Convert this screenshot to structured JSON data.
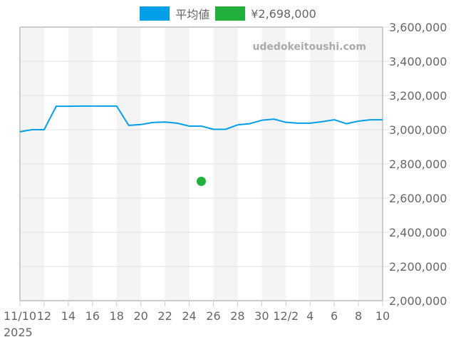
{
  "legend": [
    {
      "label": "平均値",
      "color": "#009fe8"
    },
    {
      "label": "¥2,698,000",
      "color": "#22b03c"
    }
  ],
  "watermark": "udedokeitoushi.com",
  "colors": {
    "band": "#f4f4f4",
    "grid": "#e0e0e0",
    "axis": "#cccccc",
    "tick_text": "#666666"
  },
  "chart_data": {
    "type": "line",
    "title": "",
    "xlabel": "",
    "ylabel": "",
    "ylim": [
      2000000,
      3600000
    ],
    "y_ticks": [
      2000000,
      2200000,
      2400000,
      2600000,
      2800000,
      3000000,
      3200000,
      3400000,
      3600000
    ],
    "y_tick_labels": [
      "2,000,000",
      "2,200,000",
      "2,400,000",
      "2,600,000",
      "2,800,000",
      "3,000,000",
      "3,200,000",
      "3,400,000",
      "3,600,000"
    ],
    "x_tick_labels": [
      {
        "day": 0,
        "label": "11/10"
      },
      {
        "day": 2,
        "label": "12"
      },
      {
        "day": 4,
        "label": "14"
      },
      {
        "day": 6,
        "label": "16"
      },
      {
        "day": 8,
        "label": "18"
      },
      {
        "day": 10,
        "label": "20"
      },
      {
        "day": 12,
        "label": "22"
      },
      {
        "day": 14,
        "label": "24"
      },
      {
        "day": 16,
        "label": "26"
      },
      {
        "day": 18,
        "label": "28"
      },
      {
        "day": 20,
        "label": "30"
      },
      {
        "day": 22,
        "label": "12/2"
      },
      {
        "day": 24,
        "label": "4"
      },
      {
        "day": 26,
        "label": "6"
      },
      {
        "day": 28,
        "label": "8"
      },
      {
        "day": 30,
        "label": "10"
      }
    ],
    "year_label": "2025",
    "legend_position": "top",
    "grid": true,
    "series": [
      {
        "name": "平均値",
        "type": "line",
        "color": "#009fe8",
        "x": [
          "11/10",
          "11/11",
          "11/12",
          "11/13",
          "11/14",
          "11/15",
          "11/16",
          "11/17",
          "11/18",
          "11/19",
          "11/20",
          "11/21",
          "11/22",
          "11/23",
          "11/24",
          "11/25",
          "11/26",
          "11/27",
          "11/28",
          "11/29",
          "11/30",
          "12/1",
          "12/2",
          "12/3",
          "12/4",
          "12/5",
          "12/6",
          "12/7",
          "12/8",
          "12/9",
          "12/10"
        ],
        "values": [
          2988000,
          3000000,
          3000000,
          3137000,
          3137000,
          3138000,
          3138000,
          3138000,
          3138000,
          3025000,
          3030000,
          3042000,
          3045000,
          3038000,
          3021000,
          3021000,
          3002000,
          3002000,
          3028000,
          3035000,
          3055000,
          3062000,
          3043000,
          3038000,
          3038000,
          3047000,
          3058000,
          3035000,
          3050000,
          3058000,
          3058000
        ]
      },
      {
        "name": "¥2,698,000",
        "type": "scatter",
        "color": "#22b03c",
        "x": [
          "11/25"
        ],
        "values": [
          2698000
        ]
      }
    ]
  }
}
